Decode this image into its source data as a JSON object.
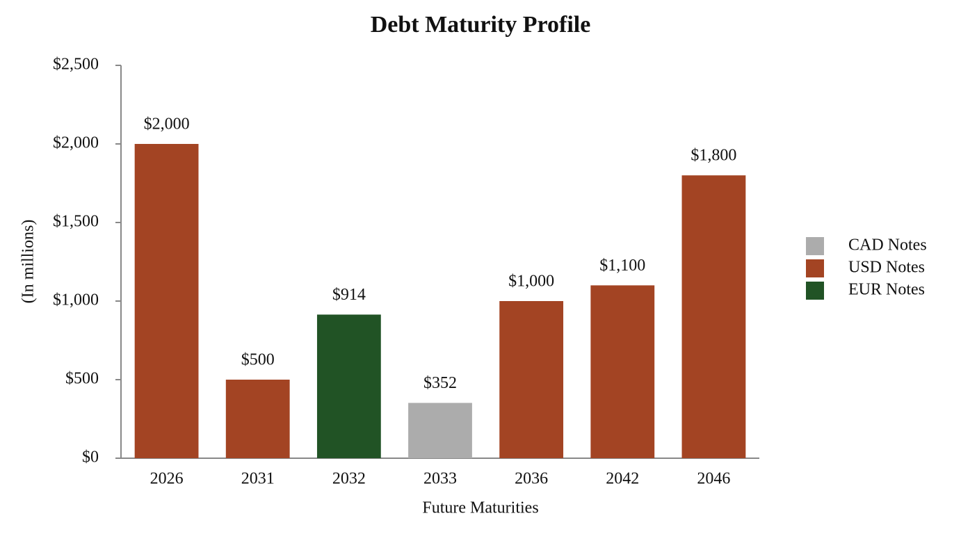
{
  "chart_data": {
    "type": "bar",
    "title": "Debt Maturity Profile",
    "x_label": "Future Maturities",
    "y_label": "(In millions)",
    "categories": [
      "2026",
      "2031",
      "2032",
      "2033",
      "2036",
      "2042",
      "2046"
    ],
    "series": [
      {
        "name": "CAD Notes",
        "color": "#acacac",
        "values": [
          null,
          null,
          null,
          352,
          null,
          null,
          null
        ],
        "value_labels": [
          null,
          null,
          null,
          "$352",
          null,
          null,
          null
        ]
      },
      {
        "name": "USD Notes",
        "color": "#a34423",
        "values": [
          2000,
          500,
          null,
          null,
          1000,
          1100,
          1800
        ],
        "value_labels": [
          "$2,000",
          "$500",
          null,
          null,
          "$1,000",
          "$1,100",
          "$1,800"
        ]
      },
      {
        "name": "EUR Notes",
        "color": "#215325",
        "values": [
          null,
          null,
          914,
          null,
          null,
          null,
          null
        ],
        "value_labels": [
          null,
          null,
          "$914",
          null,
          null,
          null,
          null
        ]
      }
    ],
    "ylim": [
      0,
      2500
    ],
    "yticks": [
      {
        "value": 0,
        "label": "$0"
      },
      {
        "value": 500,
        "label": "$500"
      },
      {
        "value": 1000,
        "label": "$1,000"
      },
      {
        "value": 1500,
        "label": "$1,500"
      },
      {
        "value": 2000,
        "label": "$2,000"
      },
      {
        "value": 2500,
        "label": "$2,500"
      }
    ],
    "grid": false,
    "legend": "right"
  }
}
